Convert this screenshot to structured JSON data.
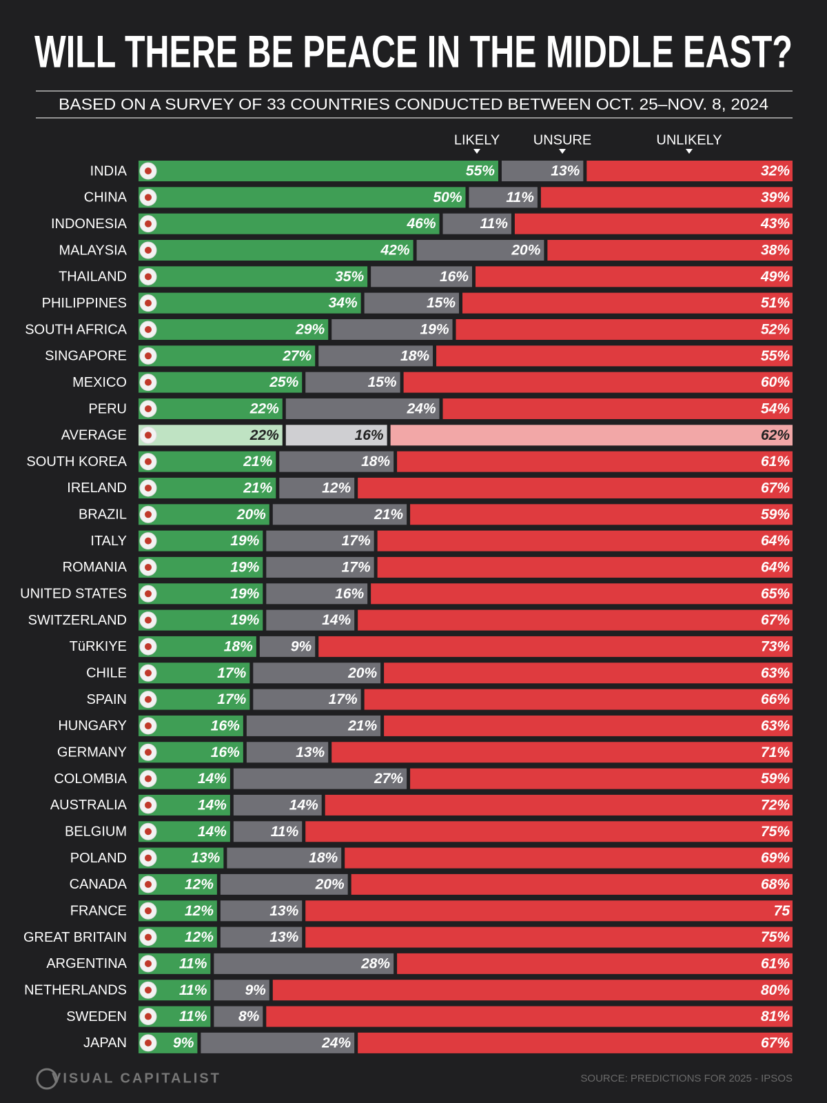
{
  "chart_data": {
    "type": "stacked-bar-horizontal",
    "title": "WILL THERE BE PEACE IN THE MIDDLE EAST?",
    "subtitle": "BASED ON A SURVEY OF 33 COUNTRIES CONDUCTED BETWEEN OCT. 25–NOV. 8, 2024",
    "source": "SOURCE: PREDICTIONS FOR 2025 - IPSOS",
    "brand": "VISUAL CAPITALIST",
    "xlim": [
      0,
      100
    ],
    "categories": [
      "INDIA",
      "CHINA",
      "INDONESIA",
      "MALAYSIA",
      "THAILAND",
      "PHILIPPINES",
      "SOUTH AFRICA",
      "SINGAPORE",
      "MEXICO",
      "PERU",
      "AVERAGE",
      "SOUTH KOREA",
      "IRELAND",
      "BRAZIL",
      "ITALY",
      "ROMANIA",
      "UNITED STATES",
      "SWITZERLAND",
      "TüRKIYE",
      "CHILE",
      "SPAIN",
      "HUNGARY",
      "GERMANY",
      "COLOMBIA",
      "AUSTRALIA",
      "BELGIUM",
      "POLAND",
      "CANADA",
      "FRANCE",
      "GREAT BRITAIN",
      "ARGENTINA",
      "NETHERLANDS",
      "SWEDEN",
      "JAPAN"
    ],
    "highlight": {
      "category_index": 10,
      "colors": [
        "#bfe3c3",
        "#cfcfd2",
        "#f2a7a7"
      ],
      "text_color": "#222222"
    },
    "series": [
      {
        "name": "LIKELY",
        "color": "#3f9e55",
        "values": [
          55,
          50,
          46,
          42,
          35,
          34,
          29,
          27,
          25,
          22,
          22,
          21,
          21,
          20,
          19,
          19,
          19,
          19,
          18,
          17,
          17,
          16,
          16,
          14,
          14,
          14,
          13,
          12,
          12,
          12,
          11,
          11,
          11,
          9
        ],
        "value_labels": [
          "55%",
          "50%",
          "46%",
          "42%",
          "35%",
          "34%",
          "29%",
          "27%",
          "25%",
          "22%",
          "22%",
          "21%",
          "21%",
          "20%",
          "19%",
          "19%",
          "19%",
          "19%",
          "18%",
          "17%",
          "17%",
          "16%",
          "16%",
          "14%",
          "14%",
          "14%",
          "13%",
          "12%",
          "12%",
          "12%",
          "11%",
          "11%",
          "11%",
          "9%"
        ]
      },
      {
        "name": "UNSURE",
        "color": "#707076",
        "values": [
          13,
          11,
          11,
          20,
          16,
          15,
          19,
          18,
          15,
          24,
          16,
          18,
          12,
          21,
          17,
          17,
          16,
          14,
          9,
          20,
          17,
          21,
          13,
          27,
          14,
          11,
          18,
          20,
          13,
          13,
          28,
          9,
          8,
          24
        ],
        "value_labels": [
          "13%",
          "11%",
          "11%",
          "20%",
          "16%",
          "15%",
          "19%",
          "18%",
          "15%",
          "24%",
          "16%",
          "18%",
          "12%",
          "21%",
          "17%",
          "17%",
          "16%",
          "14%",
          "9%",
          "20%",
          "17%",
          "21%",
          "13%",
          "27%",
          "14%",
          "11%",
          "18%",
          "20%",
          "13%",
          "13%",
          "28%",
          "9%",
          "8%",
          "24%"
        ]
      },
      {
        "name": "UNLIKELY",
        "color": "#df3b3f",
        "values": [
          32,
          39,
          43,
          38,
          49,
          51,
          52,
          55,
          60,
          54,
          62,
          61,
          67,
          59,
          64,
          64,
          65,
          67,
          73,
          63,
          66,
          63,
          71,
          59,
          72,
          75,
          69,
          68,
          75,
          75,
          61,
          80,
          81,
          67
        ],
        "value_labels": [
          "32%",
          "39%",
          "43%",
          "38%",
          "49%",
          "51%",
          "52%",
          "55%",
          "60%",
          "54%",
          "62%",
          "61%",
          "67%",
          "59%",
          "64%",
          "64%",
          "65%",
          "67%",
          "73%",
          "63%",
          "66%",
          "63%",
          "71%",
          "59%",
          "72%",
          "75%",
          "69%",
          "68%",
          "75",
          "75%",
          "61%",
          "80%",
          "81%",
          "67%"
        ]
      }
    ]
  }
}
